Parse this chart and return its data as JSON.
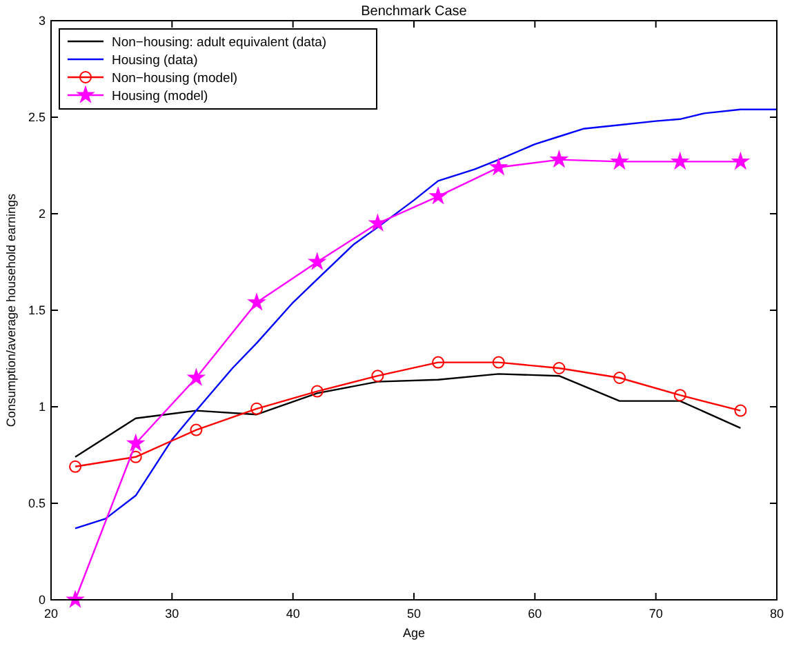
{
  "chart_data": {
    "type": "line",
    "title": "Benchmark Case",
    "xlabel": "Age",
    "ylabel": "Consumption/average household earnings",
    "xlim": [
      20,
      80
    ],
    "ylim": [
      0,
      3
    ],
    "xticks": [
      20,
      30,
      40,
      50,
      60,
      70,
      80
    ],
    "yticks": [
      0,
      0.5,
      1,
      1.5,
      2,
      2.5,
      3
    ],
    "grid": false,
    "legend": "top left",
    "series": [
      {
        "name": "Non−housing: adult equivalent (data)",
        "color": "#000000",
        "marker": "none",
        "x": [
          22,
          27,
          32,
          37,
          42,
          47,
          52,
          57,
          62,
          67,
          72,
          77
        ],
        "values": [
          0.74,
          0.94,
          0.98,
          0.96,
          1.07,
          1.13,
          1.14,
          1.17,
          1.16,
          1.03,
          1.03,
          0.89
        ]
      },
      {
        "name": "Housing (data)",
        "color": "#0000ff",
        "marker": "none",
        "x": [
          22,
          24.5,
          27,
          30,
          32,
          35,
          37,
          40,
          42,
          45,
          47,
          50,
          52,
          55,
          57,
          60,
          62,
          64,
          67,
          70,
          72,
          74,
          77,
          80
        ],
        "values": [
          0.37,
          0.42,
          0.54,
          0.83,
          0.98,
          1.2,
          1.33,
          1.54,
          1.66,
          1.84,
          1.93,
          2.07,
          2.17,
          2.23,
          2.28,
          2.36,
          2.4,
          2.44,
          2.46,
          2.48,
          2.49,
          2.52,
          2.54,
          2.54
        ]
      },
      {
        "name": "Non−housing (model)",
        "color": "#ff0000",
        "marker": "circle",
        "x": [
          22,
          27,
          32,
          37,
          42,
          47,
          52,
          57,
          62,
          67,
          72,
          77
        ],
        "values": [
          0.69,
          0.74,
          0.88,
          0.99,
          1.08,
          1.16,
          1.23,
          1.23,
          1.2,
          1.15,
          1.06,
          0.98
        ]
      },
      {
        "name": "Housing (model)",
        "color": "#ff00ff",
        "marker": "star",
        "x": [
          22,
          27,
          32,
          37,
          42,
          47,
          52,
          57,
          62,
          67,
          72,
          77
        ],
        "values": [
          0,
          0.81,
          1.15,
          1.54,
          1.75,
          1.95,
          2.09,
          2.24,
          2.28,
          2.27,
          2.27,
          2.27
        ]
      }
    ]
  }
}
